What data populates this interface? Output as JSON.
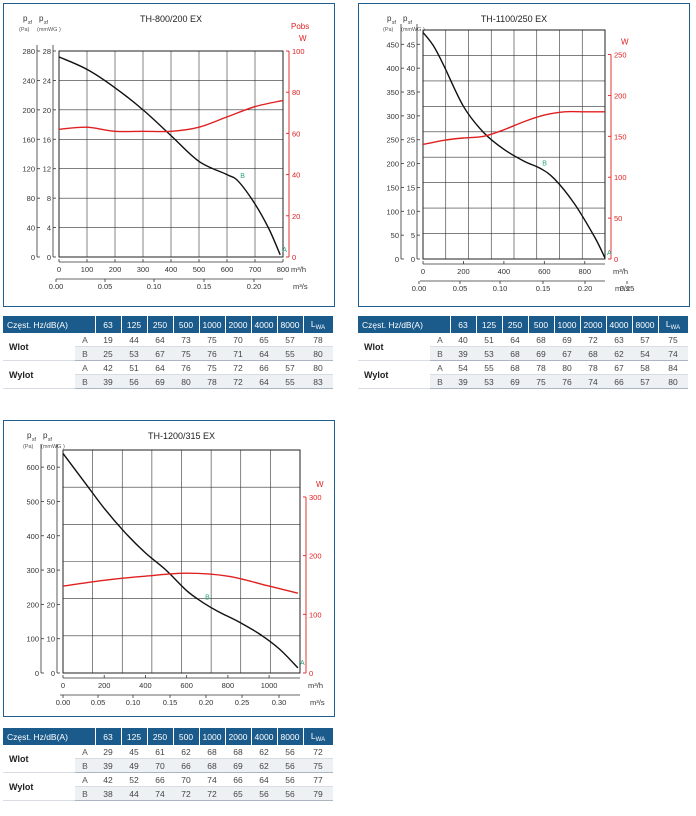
{
  "charts": [
    {
      "title": "TH-800/200 EX",
      "left_axis_label": "p",
      "left_axis_sub": "sf",
      "left_units": [
        "(Pa)",
        "(mmWG )"
      ],
      "pa_ticks": [
        0,
        40,
        80,
        120,
        160,
        200,
        240,
        280
      ],
      "mmwg_ticks": [
        0,
        4,
        8,
        12,
        16,
        20,
        24,
        28
      ],
      "power_axis_title": "Pobs",
      "power_unit": "W",
      "power_ticks": [
        0,
        20,
        40,
        60,
        80,
        100
      ],
      "x_ticks_m3h": [
        0,
        100,
        200,
        300,
        400,
        500,
        600,
        700,
        800
      ],
      "x_unit_m3h": "m³/h",
      "x_ticks_m3s": [
        "0.00",
        "0.05",
        "0.10",
        "0.15",
        "0.20"
      ],
      "x_unit_m3s": "m³/s",
      "point_a": "A",
      "point_b": "B"
    },
    {
      "title": "TH-1100/250 EX",
      "left_axis_label": "p",
      "left_axis_sub": "sf",
      "left_units": [
        "(Pa)",
        "(mmWG )"
      ],
      "pa_ticks": [
        0,
        50,
        100,
        150,
        200,
        250,
        300,
        350,
        400,
        450
      ],
      "mmwg_ticks": [
        0,
        5,
        10,
        15,
        20,
        25,
        30,
        35,
        40,
        45
      ],
      "power_axis_title": "",
      "power_unit": "W",
      "power_ticks": [
        0,
        50,
        100,
        150,
        200,
        250
      ],
      "x_ticks_m3h": [
        0,
        200,
        400,
        600,
        800
      ],
      "x_unit_m3h": "m³/h",
      "x_ticks_m3s": [
        "0.00",
        "0.05",
        "0.10",
        "0.15",
        "0.20",
        "0.25"
      ],
      "x_unit_m3s": "m³/s",
      "point_a": "A",
      "point_b": "B"
    },
    {
      "title": "TH-1200/315 EX",
      "left_axis_label": "p",
      "left_axis_sub": "sf",
      "left_units": [
        "(Pa)",
        "(mmWG )"
      ],
      "pa_ticks": [
        0,
        100,
        200,
        300,
        400,
        500,
        600
      ],
      "mmwg_ticks": [
        0,
        10,
        20,
        30,
        40,
        50,
        60
      ],
      "power_axis_title": "",
      "power_unit": "W",
      "power_ticks": [
        0,
        100,
        200,
        300
      ],
      "x_ticks_m3h": [
        0,
        200,
        400,
        600,
        800,
        1000
      ],
      "x_unit_m3h": "m³/h",
      "x_ticks_m3s": [
        "0.00",
        "0.05",
        "0.10",
        "0.15",
        "0.20",
        "0.25",
        "0.30"
      ],
      "x_unit_m3s": "m³/s",
      "point_a": "A",
      "point_b": "B"
    }
  ],
  "chart_data": [
    {
      "type": "line",
      "title": "TH-800/200 EX",
      "xlabel": "m³/h",
      "ylabel": "psf (Pa)",
      "y2label": "Pobs W",
      "xlim": [
        0,
        800
      ],
      "ylim": [
        0,
        280
      ],
      "y2lim": [
        0,
        100
      ],
      "grid": true,
      "series": [
        {
          "axis": "left",
          "color": "#111111",
          "x": [
            0,
            100,
            200,
            300,
            400,
            500,
            600,
            640,
            700,
            750,
            790
          ],
          "y": [
            272,
            255,
            230,
            200,
            165,
            130,
            112,
            103,
            72,
            38,
            3
          ]
        },
        {
          "axis": "right",
          "color": "#e02020",
          "x": [
            0,
            100,
            200,
            300,
            400,
            500,
            600,
            700,
            800
          ],
          "y": [
            62,
            63,
            61,
            61,
            61,
            63,
            68,
            73,
            76
          ]
        }
      ],
      "annotations": [
        {
          "label": "A",
          "x": 790,
          "y": 3
        },
        {
          "label": "B",
          "x": 640,
          "y": 103
        }
      ]
    },
    {
      "type": "line",
      "title": "TH-1100/250 EX",
      "xlabel": "m³/h",
      "ylabel": "psf (Pa)",
      "y2label": "W",
      "xlim": [
        0,
        900
      ],
      "ylim": [
        0,
        480
      ],
      "y2lim": [
        0,
        280
      ],
      "grid": true,
      "series": [
        {
          "axis": "left",
          "color": "#111111",
          "x": [
            0,
            50,
            100,
            200,
            300,
            400,
            500,
            580,
            650,
            750,
            850,
            900
          ],
          "y": [
            475,
            448,
            408,
            320,
            265,
            230,
            205,
            190,
            168,
            115,
            45,
            2
          ]
        },
        {
          "axis": "right",
          "color": "#e02020",
          "x": [
            0,
            100,
            200,
            300,
            400,
            500,
            600,
            700,
            800,
            900
          ],
          "y": [
            140,
            145,
            148,
            150,
            158,
            168,
            176,
            180,
            180,
            180
          ]
        }
      ],
      "annotations": [
        {
          "label": "A",
          "x": 900,
          "y": 2
        },
        {
          "label": "B",
          "x": 580,
          "y": 190
        }
      ]
    },
    {
      "type": "line",
      "title": "TH-1200/315 EX",
      "xlabel": "m³/h",
      "ylabel": "psf (Pa)",
      "y2label": "W",
      "xlim": [
        0,
        1150
      ],
      "ylim": [
        0,
        650
      ],
      "y2lim": [
        0,
        380
      ],
      "grid": true,
      "series": [
        {
          "axis": "left",
          "color": "#111111",
          "x": [
            0,
            100,
            200,
            300,
            400,
            500,
            600,
            680,
            750,
            850,
            950,
            1050,
            1140
          ],
          "y": [
            640,
            560,
            480,
            410,
            350,
            300,
            240,
            205,
            180,
            150,
            115,
            70,
            15
          ]
        },
        {
          "axis": "right",
          "color": "#e02020",
          "x": [
            0,
            200,
            400,
            600,
            800,
            1000,
            1140
          ],
          "y": [
            148,
            158,
            165,
            170,
            165,
            148,
            136
          ]
        }
      ],
      "annotations": [
        {
          "label": "A",
          "x": 1140,
          "y": 15
        },
        {
          "label": "B",
          "x": 680,
          "y": 205
        }
      ]
    }
  ],
  "tables": [
    {
      "header_first": "Częst. Hz/dB(A)",
      "freqs": [
        "63",
        "125",
        "250",
        "500",
        "1000",
        "2000",
        "4000",
        "8000"
      ],
      "lwa_main": "L",
      "lwa_sub": "WA",
      "groups": [
        {
          "label": "Wlot",
          "rows": [
            {
              "ab": "A",
              "values": [
                "19",
                "44",
                "64",
                "73",
                "75",
                "70",
                "65",
                "57"
              ],
              "lwa": "78"
            },
            {
              "ab": "B",
              "values": [
                "25",
                "53",
                "67",
                "75",
                "76",
                "71",
                "64",
                "55"
              ],
              "lwa": "80"
            }
          ]
        },
        {
          "label": "Wylot",
          "rows": [
            {
              "ab": "A",
              "values": [
                "42",
                "51",
                "64",
                "76",
                "75",
                "72",
                "66",
                "57"
              ],
              "lwa": "80"
            },
            {
              "ab": "B",
              "values": [
                "39",
                "56",
                "69",
                "80",
                "78",
                "72",
                "64",
                "55"
              ],
              "lwa": "83"
            }
          ]
        }
      ]
    },
    {
      "header_first": "Częst. Hz/dB(A)",
      "freqs": [
        "63",
        "125",
        "250",
        "500",
        "1000",
        "2000",
        "4000",
        "8000"
      ],
      "lwa_main": "L",
      "lwa_sub": "WA",
      "groups": [
        {
          "label": "Wlot",
          "rows": [
            {
              "ab": "A",
              "values": [
                "40",
                "51",
                "64",
                "68",
                "69",
                "72",
                "63",
                "57"
              ],
              "lwa": "75"
            },
            {
              "ab": "B",
              "values": [
                "39",
                "53",
                "68",
                "69",
                "67",
                "68",
                "62",
                "54"
              ],
              "lwa": "74"
            }
          ]
        },
        {
          "label": "Wylot",
          "rows": [
            {
              "ab": "A",
              "values": [
                "54",
                "55",
                "68",
                "78",
                "80",
                "78",
                "67",
                "58"
              ],
              "lwa": "84"
            },
            {
              "ab": "B",
              "values": [
                "39",
                "53",
                "69",
                "75",
                "76",
                "74",
                "66",
                "57"
              ],
              "lwa": "80"
            }
          ]
        }
      ]
    },
    {
      "header_first": "Częst. Hz/dB(A)",
      "freqs": [
        "63",
        "125",
        "250",
        "500",
        "1000",
        "2000",
        "4000",
        "8000"
      ],
      "lwa_main": "L",
      "lwa_sub": "WA",
      "groups": [
        {
          "label": "Wlot",
          "rows": [
            {
              "ab": "A",
              "values": [
                "29",
                "45",
                "61",
                "62",
                "68",
                "68",
                "62",
                "56"
              ],
              "lwa": "72"
            },
            {
              "ab": "B",
              "values": [
                "39",
                "49",
                "70",
                "66",
                "68",
                "69",
                "62",
                "56"
              ],
              "lwa": "75"
            }
          ]
        },
        {
          "label": "Wylot",
          "rows": [
            {
              "ab": "A",
              "values": [
                "42",
                "52",
                "66",
                "70",
                "74",
                "66",
                "64",
                "56"
              ],
              "lwa": "77"
            },
            {
              "ab": "B",
              "values": [
                "38",
                "44",
                "74",
                "72",
                "72",
                "65",
                "56",
                "56"
              ],
              "lwa": "79"
            }
          ]
        }
      ]
    }
  ]
}
